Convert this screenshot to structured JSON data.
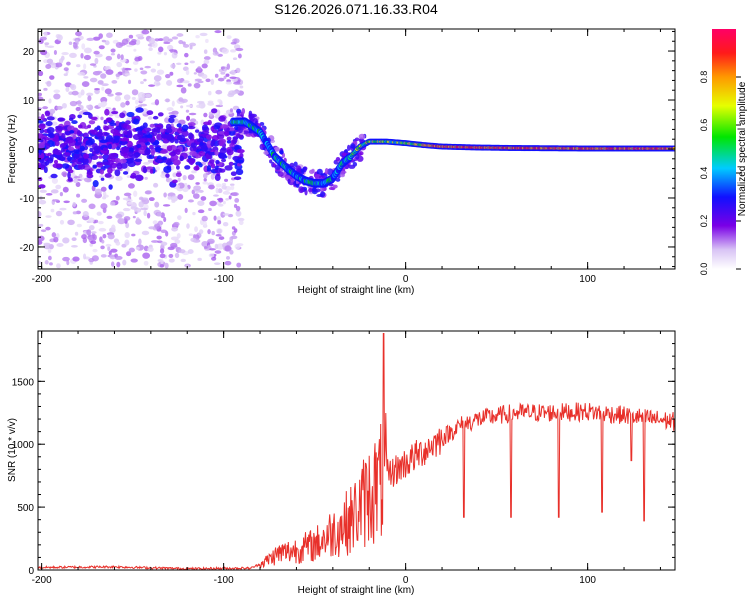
{
  "title": "S126.2026.071.16.33.R04",
  "chart_data": [
    {
      "type": "heatmap",
      "xlabel": "Height of straight line (km)",
      "ylabel": "Frequency (Hz)",
      "xlim": [
        -202,
        148
      ],
      "ylim": [
        -24.5,
        24.5
      ],
      "xticks": [
        -200,
        -100,
        0,
        100
      ],
      "yticks": [
        -20,
        -10,
        0,
        10,
        20
      ],
      "colorbar": {
        "label": "Normalized spectral amplitude",
        "range": [
          0,
          1
        ],
        "ticks": [
          "0.0",
          "0.2",
          "0.4",
          "0.6",
          "0.8"
        ],
        "colormap": "rainbow (white-violet-blue-cyan-green-yellow-red-magenta)"
      },
      "ridge": {
        "description": "Doppler frequency ridge of the signal",
        "x": [
          -95,
          -88,
          -80,
          -72,
          -65,
          -60,
          -55,
          -50,
          -45,
          -40,
          -35,
          -30,
          -25,
          -20,
          -10,
          0,
          10,
          20,
          40,
          60,
          100,
          148
        ],
        "y": [
          5.5,
          5.5,
          3.5,
          -1.5,
          -4,
          -5.5,
          -6.5,
          -7,
          -7,
          -6,
          -3,
          -1.5,
          0.5,
          1.5,
          1.5,
          1.2,
          0.8,
          0.5,
          0.3,
          0.2,
          0.1,
          0.1
        ]
      },
      "noise_region": {
        "x_range": [
          -202,
          -90
        ],
        "frequency_spread": [
          -24,
          24
        ]
      }
    },
    {
      "type": "line",
      "xlabel": "Height of straight line (km)",
      "ylabel": "SNR (10 * v/v)",
      "xlim": [
        -202,
        148
      ],
      "ylim": [
        0,
        1900
      ],
      "xticks": [
        -200,
        -100,
        0,
        100
      ],
      "yticks": [
        0,
        500,
        1000,
        1500
      ],
      "line_color": "#e8302a",
      "envelope": {
        "x": [
          -202,
          -160,
          -120,
          -85,
          -78,
          -70,
          -60,
          -50,
          -40,
          -30,
          -20,
          -10,
          0,
          10,
          20,
          30,
          40,
          60,
          80,
          100,
          120,
          148
        ],
        "y": [
          20,
          25,
          10,
          15,
          60,
          130,
          160,
          200,
          300,
          400,
          600,
          750,
          850,
          950,
          1050,
          1150,
          1200,
          1250,
          1250,
          1260,
          1230,
          1180
        ]
      },
      "spikes": [
        {
          "x": -12,
          "y": 1880
        },
        {
          "x": 32,
          "y": 420
        },
        {
          "x": 58,
          "y": 420
        },
        {
          "x": 84,
          "y": 420
        },
        {
          "x": 108,
          "y": 460
        },
        {
          "x": 124,
          "y": 870
        },
        {
          "x": 131,
          "y": 390
        }
      ]
    }
  ]
}
